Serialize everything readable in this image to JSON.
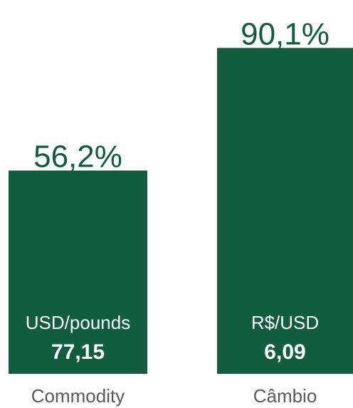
{
  "chart_data": {
    "type": "bar",
    "categories": [
      "Commodity",
      "Câmbio"
    ],
    "values": [
      56.2,
      90.1
    ],
    "value_labels": [
      "56,2%",
      "90,1%"
    ],
    "inner_labels": [
      [
        "USD/pounds",
        "77,15"
      ],
      [
        "R$/USD",
        "6,09"
      ]
    ],
    "color": "#115e3f",
    "ylim": [
      0,
      100
    ]
  }
}
